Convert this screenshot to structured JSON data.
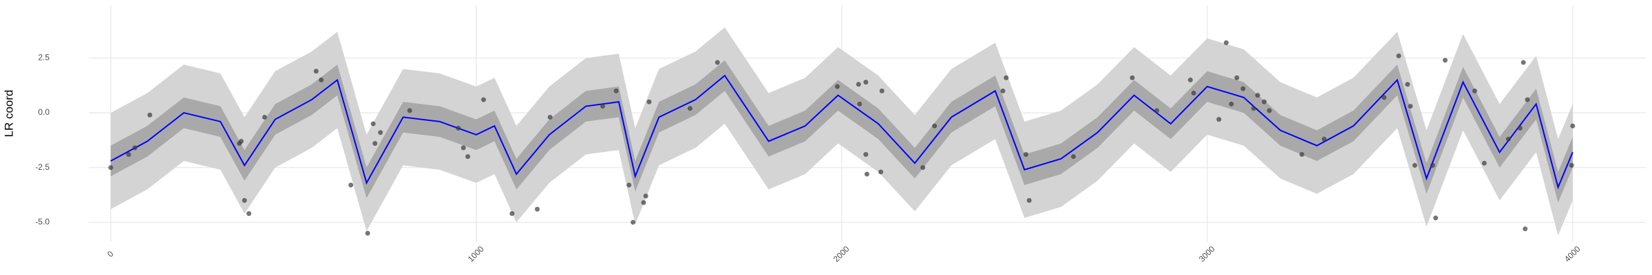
{
  "chart_data": {
    "type": "line",
    "ylabel": "LR coord",
    "xlim": [
      -60,
      4200
    ],
    "ylim": [
      -5.9,
      4.9
    ],
    "xticks": [
      0,
      1000,
      2000,
      3000,
      4000
    ],
    "yticks": [
      {
        "value": -5,
        "label": "-5.0"
      },
      {
        "value": -2.5,
        "label": "-2.5"
      },
      {
        "value": 0,
        "label": "0.0"
      },
      2.5
    ],
    "grid": true,
    "x": [
      0,
      100,
      200,
      300,
      366,
      450,
      550,
      620,
      700,
      800,
      900,
      1000,
      1050,
      1110,
      1200,
      1300,
      1390,
      1435,
      1500,
      1600,
      1680,
      1800,
      1900,
      1990,
      2100,
      2200,
      2300,
      2420,
      2500,
      2600,
      2700,
      2800,
      2900,
      3000,
      3100,
      3200,
      3300,
      3400,
      3520,
      3600,
      3700,
      3800,
      3900,
      3960,
      4000
    ],
    "mean": {
      "color": "#0000ff",
      "values": [
        -2.2,
        -1.3,
        0.0,
        -0.4,
        -2.4,
        -0.3,
        0.6,
        1.5,
        -3.2,
        -0.2,
        -0.4,
        -1.0,
        -0.6,
        -2.8,
        -1.0,
        0.3,
        0.5,
        -2.9,
        -0.2,
        0.6,
        1.7,
        -1.3,
        -0.6,
        0.8,
        -0.5,
        -2.3,
        -0.2,
        1.0,
        -2.6,
        -2.1,
        -0.9,
        0.8,
        -0.5,
        1.2,
        0.7,
        -0.8,
        -1.5,
        -0.6,
        1.5,
        -3.0,
        1.4,
        -1.8,
        0.4,
        -3.4,
        -1.8
      ]
    },
    "bands": [
      {
        "color": "#d4d4d4",
        "lower": [
          -4.4,
          -3.5,
          -2.2,
          -2.6,
          -4.6,
          -2.5,
          -1.6,
          -0.7,
          -5.4,
          -2.4,
          -2.6,
          -3.2,
          -2.8,
          -5.0,
          -3.2,
          -1.9,
          -1.7,
          -5.1,
          -2.4,
          -1.6,
          -0.5,
          -3.5,
          -2.8,
          -1.4,
          -2.7,
          -4.5,
          -2.4,
          -1.2,
          -4.8,
          -4.3,
          -3.1,
          -1.4,
          -2.7,
          -1.0,
          -1.5,
          -3.0,
          -3.7,
          -2.8,
          -0.7,
          -5.2,
          -0.8,
          -4.0,
          -1.8,
          -5.6,
          -4.0
        ],
        "upper": [
          0.0,
          0.9,
          2.2,
          1.8,
          -0.2,
          1.9,
          2.8,
          3.7,
          -1.0,
          2.0,
          1.8,
          1.2,
          1.6,
          -0.6,
          1.2,
          2.5,
          2.7,
          -0.7,
          2.0,
          2.8,
          3.9,
          0.9,
          1.6,
          3.0,
          1.7,
          -0.1,
          2.0,
          3.2,
          -0.4,
          0.1,
          1.3,
          3.0,
          1.7,
          3.4,
          2.9,
          1.4,
          0.7,
          1.6,
          3.7,
          -0.8,
          3.6,
          0.4,
          2.6,
          -1.2,
          0.4
        ]
      },
      {
        "color": "#a9a9a9",
        "lower": [
          -2.9,
          -2.0,
          -0.7,
          -1.1,
          -3.1,
          -1.0,
          -0.1,
          0.8,
          -3.9,
          -0.9,
          -1.1,
          -1.7,
          -1.3,
          -3.5,
          -1.7,
          -0.4,
          -0.2,
          -3.6,
          -0.9,
          -0.1,
          1.0,
          -2.0,
          -1.3,
          0.1,
          -1.2,
          -3.0,
          -0.9,
          0.3,
          -3.3,
          -2.8,
          -1.6,
          0.1,
          -1.2,
          0.5,
          0.0,
          -1.5,
          -2.2,
          -1.3,
          0.8,
          -3.7,
          0.7,
          -2.5,
          -0.3,
          -4.1,
          -2.5
        ],
        "upper": [
          -1.5,
          -0.6,
          0.7,
          0.3,
          -1.7,
          0.4,
          1.3,
          2.2,
          -2.5,
          0.5,
          0.3,
          -0.3,
          0.1,
          -2.1,
          -0.3,
          1.0,
          1.2,
          -2.2,
          0.5,
          1.3,
          2.4,
          -0.6,
          0.1,
          1.5,
          0.2,
          -1.6,
          0.5,
          1.7,
          -1.9,
          -1.4,
          -0.2,
          1.5,
          0.2,
          1.9,
          1.4,
          -0.1,
          -0.8,
          0.1,
          2.2,
          -2.3,
          2.1,
          -1.1,
          1.1,
          -2.7,
          -1.1
        ]
      }
    ],
    "points": {
      "color": "#3a3a3a",
      "x": [
        0,
        49,
        66,
        107,
        352,
        357,
        366,
        378,
        421,
        562,
        576,
        657,
        703,
        718,
        723,
        738,
        818,
        951,
        965,
        977,
        1020,
        1098,
        1167,
        1202,
        1346,
        1383,
        1418,
        1429,
        1464,
        1458,
        1473,
        1585,
        1660,
        1988,
        2046,
        2066,
        2049,
        2066,
        2069,
        2107,
        2110,
        2222,
        2254,
        2441,
        2450,
        2504,
        2513,
        2634,
        2795,
        2862,
        2954,
        2963,
        3032,
        3052,
        3066,
        3081,
        3098,
        3127,
        3138,
        3156,
        3170,
        3259,
        3320,
        3484,
        3524,
        3548,
        3556,
        3568,
        3617,
        3625,
        3651,
        3732,
        3758,
        3824,
        3856,
        3865,
        3876,
        3870,
        4000,
        3997
      ],
      "y": [
        -2.5,
        -1.9,
        -1.6,
        -0.1,
        -1.4,
        -1.3,
        -4.0,
        -4.6,
        -0.2,
        1.9,
        1.5,
        -3.3,
        -5.5,
        -0.5,
        -1.4,
        -0.9,
        0.1,
        -0.7,
        -1.6,
        -2.0,
        0.6,
        -4.6,
        -4.4,
        -0.2,
        0.3,
        1.0,
        -3.3,
        -5.0,
        -3.8,
        -4.1,
        0.5,
        0.2,
        2.3,
        1.2,
        1.3,
        1.4,
        0.4,
        -1.9,
        -2.8,
        -2.7,
        1.0,
        -2.5,
        -0.6,
        1.0,
        1.6,
        -1.9,
        -4.0,
        -2.0,
        1.6,
        0.1,
        1.5,
        0.9,
        -0.3,
        3.2,
        0.4,
        1.6,
        1.1,
        0.2,
        0.8,
        0.5,
        0.1,
        -1.9,
        -1.2,
        0.7,
        2.6,
        1.3,
        0.3,
        -2.4,
        -2.4,
        -4.8,
        2.4,
        1.0,
        -2.3,
        -1.2,
        -0.7,
        2.3,
        0.6,
        -5.3,
        -0.6,
        -2.4
      ]
    }
  }
}
